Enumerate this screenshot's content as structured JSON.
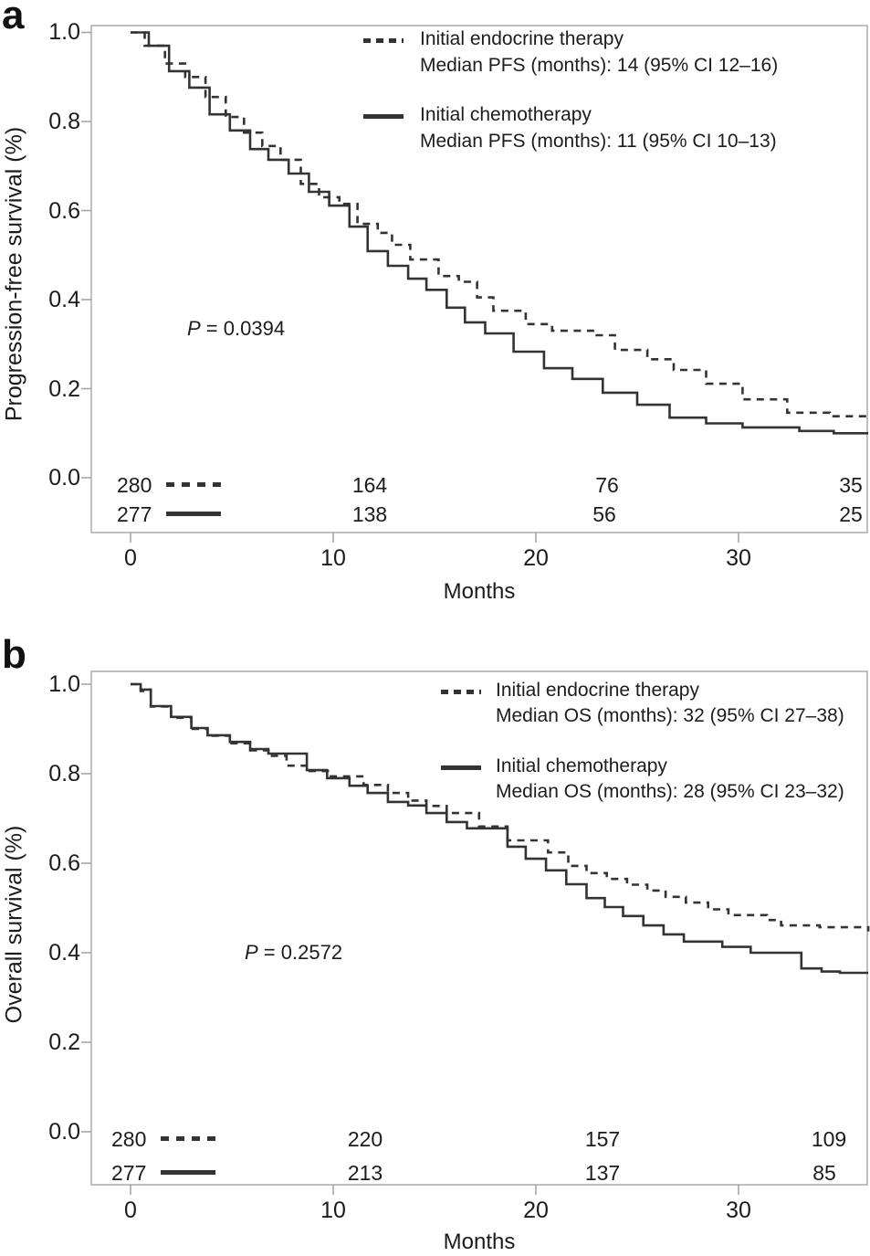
{
  "figure": {
    "panels": [
      {
        "letter": "a",
        "ylabel": "Progression-free survival (%)",
        "xlabel": "Months",
        "p": {
          "italic": "P",
          "rest": " = 0.0394"
        },
        "legend": [
          {
            "name": "Initial endocrine therapy",
            "median": "Median PFS (months): 14 (95% CI 12–16)",
            "line": "dashed"
          },
          {
            "name": "Initial chemotherapy",
            "median": "Median PFS (months): 11 (95% CI 10–13)",
            "line": "solid"
          }
        ]
      },
      {
        "letter": "b",
        "ylabel": "Overall survival (%)",
        "xlabel": "Months",
        "p": {
          "italic": "P",
          "rest": " = 0.2572"
        },
        "legend": [
          {
            "name": "Initial endocrine therapy",
            "median": "Median OS (months): 32 (95% CI 27–38)",
            "line": "dashed"
          },
          {
            "name": "Initial chemotherapy",
            "median": "Median OS (months): 28 (95% CI 23–32)",
            "line": "solid"
          }
        ]
      }
    ]
  },
  "chart_data": [
    {
      "type": "line",
      "subtype": "kaplan_meier_step",
      "title": "",
      "xlabel": "Months",
      "ylabel": "Progression-free survival (%)",
      "xlim": [
        -1.9,
        36.4
      ],
      "ylim": [
        -0.12,
        1.02
      ],
      "xticks": [
        0,
        10,
        20,
        30
      ],
      "yticks": [
        1.0,
        0.8,
        0.6,
        0.4,
        0.2,
        0.0
      ],
      "xtick_labels": [
        "0",
        "10",
        "20",
        "30"
      ],
      "ytick_labels": [
        "1.0",
        "0.8",
        "0.6",
        "0.4",
        "0.2",
        "0.0"
      ],
      "grid": false,
      "legend_position": "upper right (inside)",
      "p_value": "P = 0.0394",
      "series": [
        {
          "name": "Initial endocrine therapy",
          "line": "dashed",
          "median": "Median PFS (months): 14 (95% CI 12–16)",
          "x": [
            0,
            0.7,
            1.7,
            2.7,
            3.7,
            4.7,
            5.6,
            6.5,
            7.4,
            8.4,
            9.3,
            10.3,
            11.2,
            12.2,
            12.9,
            13.8,
            15.2,
            16.2,
            17.1,
            17.9,
            19.5,
            20.8,
            23.0,
            23.9,
            25.5,
            26.8,
            28.4,
            30.2,
            32.4,
            34.5,
            36.4
          ],
          "y": [
            1.0,
            0.97,
            0.93,
            0.9,
            0.855,
            0.81,
            0.775,
            0.745,
            0.714,
            0.66,
            0.63,
            0.615,
            0.57,
            0.55,
            0.523,
            0.49,
            0.453,
            0.44,
            0.405,
            0.375,
            0.345,
            0.33,
            0.32,
            0.287,
            0.266,
            0.242,
            0.211,
            0.176,
            0.146,
            0.138,
            0.133
          ]
        },
        {
          "name": "Initial chemotherapy",
          "line": "solid",
          "median": "Median PFS (months): 11 (95% CI 10–13)",
          "x": [
            0,
            0.9,
            1.9,
            2.9,
            3.9,
            4.9,
            5.9,
            6.8,
            7.8,
            8.8,
            9.8,
            10.8,
            11.7,
            12.7,
            13.7,
            14.6,
            15.6,
            16.5,
            17.5,
            18.9,
            20.4,
            21.8,
            23.3,
            25.0,
            26.6,
            28.4,
            30.2,
            33.0,
            34.7,
            36.4
          ],
          "y": [
            1.0,
            0.97,
            0.913,
            0.876,
            0.816,
            0.78,
            0.738,
            0.714,
            0.683,
            0.642,
            0.611,
            0.564,
            0.509,
            0.476,
            0.447,
            0.422,
            0.382,
            0.349,
            0.324,
            0.283,
            0.246,
            0.222,
            0.191,
            0.164,
            0.135,
            0.122,
            0.113,
            0.105,
            0.1,
            0.1
          ]
        }
      ],
      "numbers_at_risk": {
        "x_months": [
          0.3,
          11.6,
          23.5,
          35.5
        ],
        "rows": [
          {
            "name": "Initial endocrine therapy",
            "n": [
              "280",
              "164",
              "76",
              "35"
            ]
          },
          {
            "name": "Initial chemotherapy",
            "n": [
              "277",
              "138",
              "56",
              "25"
            ]
          }
        ]
      }
    },
    {
      "type": "line",
      "subtype": "kaplan_meier_step",
      "title": "",
      "xlabel": "Months",
      "ylabel": "Overall survival (%)",
      "xlim": [
        -1.9,
        36.4
      ],
      "ylim": [
        -0.12,
        1.02
      ],
      "xticks": [
        0,
        10,
        20,
        30
      ],
      "yticks": [
        1.0,
        0.8,
        0.6,
        0.4,
        0.2,
        0.0
      ],
      "xtick_labels": [
        "0",
        "10",
        "20",
        "30"
      ],
      "ytick_labels": [
        "1.0",
        "0.8",
        "0.6",
        "0.4",
        "0.2",
        "0.0"
      ],
      "grid": false,
      "legend_position": "upper right (inside)",
      "p_value": "P = 0.2572",
      "series": [
        {
          "name": "Initial endocrine therapy",
          "line": "dashed",
          "median": "Median OS (months): 32 (95% CI 27–38)",
          "x": [
            0,
            0.5,
            1.0,
            2.0,
            3.0,
            3.8,
            4.9,
            5.9,
            6.8,
            7.7,
            8.7,
            9.8,
            11.5,
            12.7,
            13.7,
            14.6,
            15.6,
            17.2,
            18.6,
            20.6,
            21.6,
            22.5,
            23.5,
            24.5,
            25.5,
            26.4,
            27.4,
            28.5,
            29.5,
            31.4,
            32.1,
            34.0,
            36.4
          ],
          "y": [
            1.0,
            0.985,
            0.95,
            0.925,
            0.9,
            0.885,
            0.868,
            0.852,
            0.84,
            0.818,
            0.806,
            0.794,
            0.775,
            0.757,
            0.74,
            0.728,
            0.712,
            0.682,
            0.651,
            0.624,
            0.594,
            0.578,
            0.565,
            0.552,
            0.539,
            0.525,
            0.512,
            0.497,
            0.484,
            0.473,
            0.461,
            0.457,
            0.45
          ]
        },
        {
          "name": "Initial chemotherapy",
          "line": "solid",
          "median": "Median OS (months): 28 (95% CI 23–32)",
          "x": [
            0,
            0.5,
            1.0,
            2.0,
            3.0,
            3.8,
            4.9,
            5.9,
            6.8,
            8.7,
            9.7,
            10.8,
            11.7,
            12.7,
            13.7,
            14.6,
            15.6,
            16.6,
            18.6,
            19.5,
            20.5,
            21.5,
            22.5,
            23.4,
            24.3,
            25.3,
            26.3,
            27.3,
            29.2,
            30.6,
            33.1,
            34.1,
            35.0,
            36.4
          ],
          "y": [
            1.0,
            0.988,
            0.951,
            0.927,
            0.902,
            0.886,
            0.871,
            0.855,
            0.845,
            0.808,
            0.79,
            0.773,
            0.757,
            0.737,
            0.729,
            0.712,
            0.692,
            0.678,
            0.637,
            0.61,
            0.584,
            0.553,
            0.522,
            0.502,
            0.482,
            0.461,
            0.441,
            0.425,
            0.413,
            0.4,
            0.365,
            0.358,
            0.355,
            0.355
          ]
        }
      ],
      "numbers_at_risk": {
        "x_months": [
          0.3,
          11.6,
          23.3,
          34.5
        ],
        "rows": [
          {
            "name": "Initial endocrine therapy",
            "n": [
              "280",
              "220",
              "157",
              "109"
            ]
          },
          {
            "name": "Initial chemotherapy",
            "n": [
              "277",
              "213",
              "137",
              "85"
            ]
          }
        ]
      }
    }
  ]
}
